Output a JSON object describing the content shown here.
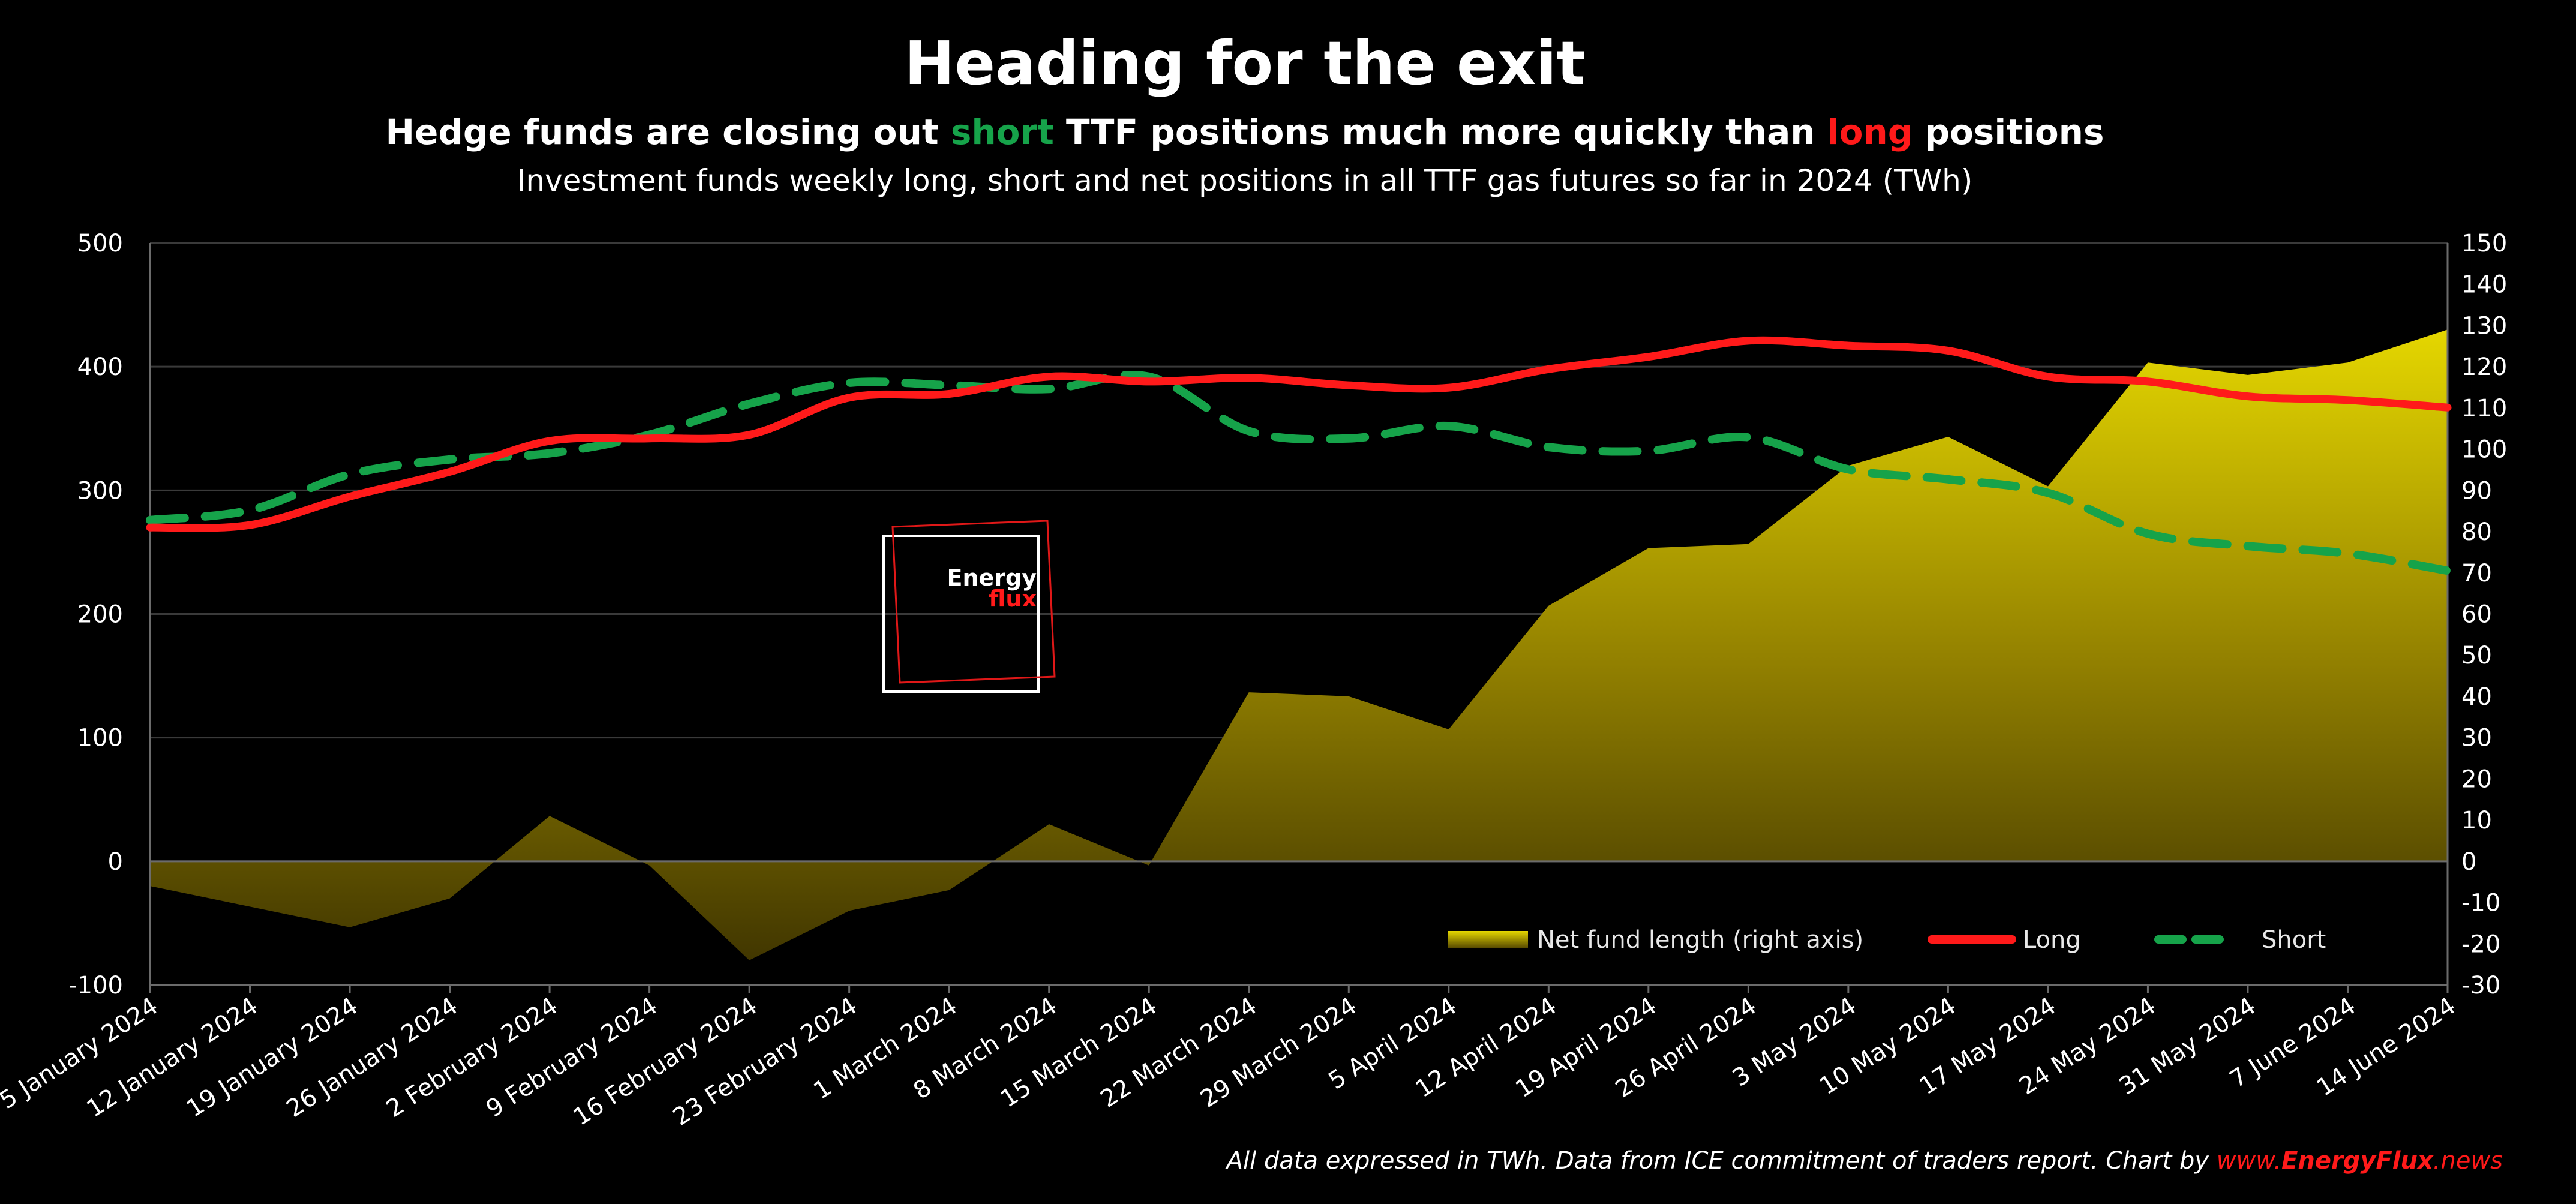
{
  "header": {
    "title": "Heading for the exit",
    "subtitle_parts": [
      {
        "text": "Hedge funds are closing out ",
        "color": "#ffffff"
      },
      {
        "text": "short",
        "color": "#16a34a"
      },
      {
        "text": " TTF positions much more quickly than ",
        "color": "#ffffff"
      },
      {
        "text": "long",
        "color": "#ff1a1a"
      },
      {
        "text": " positions",
        "color": "#ffffff"
      }
    ],
    "description": "Investment funds weekly long, short and net positions in all TTF gas futures so far in 2024 (TWh)"
  },
  "logo": {
    "line1": "Energy",
    "line2": "flux"
  },
  "footer": {
    "note": "All data expressed in TWh. Data from ICE commitment of traders report. Chart by ",
    "link_prefix": "www.",
    "link_brand": "EnergyFlux",
    "link_suffix": ".news",
    "link_color": "#ff1a1a"
  },
  "chart_data": {
    "type": "line",
    "categories": [
      "5 January 2024",
      "12 January 2024",
      "19 January 2024",
      "26 January 2024",
      "2 February 2024",
      "9 February 2024",
      "16 February 2024",
      "23 February 2024",
      "1 March 2024",
      "8 March 2024",
      "15 March 2024",
      "22 March 2024",
      "29 March 2024",
      "5 April 2024",
      "12 April 2024",
      "19 April 2024",
      "26 April 2024",
      "3 May 2024",
      "10 May 2024",
      "17 May 2024",
      "24 May 2024",
      "31 May 2024",
      "7 June 2024",
      "14 June 2024"
    ],
    "left_axis": {
      "min": -100,
      "max": 500,
      "step": 100,
      "ticks": [
        "-100",
        "0",
        "100",
        "200",
        "300",
        "400",
        "500"
      ]
    },
    "right_axis": {
      "min": -30,
      "max": 150,
      "step": 10,
      "ticks": [
        "-30",
        "-20",
        "-10",
        "0",
        "10",
        "20",
        "30",
        "40",
        "50",
        "60",
        "70",
        "80",
        "90",
        "100",
        "110",
        "120",
        "130",
        "140",
        "150"
      ]
    },
    "grid": true,
    "legend_position": "bottom-right",
    "series": [
      {
        "name": "Net fund length (right axis)",
        "kind": "area",
        "axis": "right",
        "color": "#c9b800",
        "values": [
          -6,
          -11,
          -16,
          -9,
          11,
          -1,
          -24,
          -12,
          -7,
          9,
          -1,
          41,
          40,
          32,
          62,
          76,
          77,
          96,
          103,
          91,
          121,
          118,
          121,
          129
        ]
      },
      {
        "name": "Long",
        "kind": "line",
        "axis": "left",
        "color": "#ff1a1a",
        "values": [
          270,
          272,
          295,
          315,
          340,
          342,
          345,
          375,
          378,
          392,
          388,
          391,
          385,
          383,
          398,
          408,
          421,
          417,
          413,
          392,
          388,
          376,
          373,
          367
        ]
      },
      {
        "name": "Short",
        "kind": "dashed-line",
        "axis": "left",
        "color": "#16a34a",
        "values": [
          276,
          284,
          313,
          325,
          330,
          345,
          370,
          387,
          385,
          382,
          392,
          348,
          342,
          352,
          335,
          332,
          343,
          317,
          309,
          298,
          265,
          255,
          249,
          235
        ]
      }
    ]
  }
}
